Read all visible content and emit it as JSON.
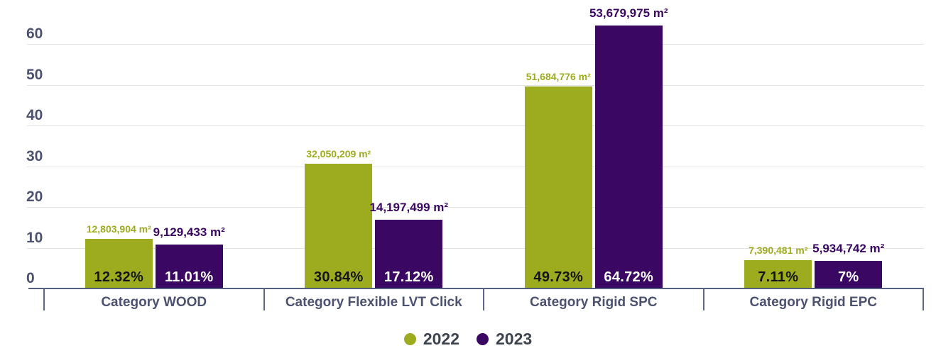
{
  "chart_data": {
    "type": "bar",
    "categories": [
      "Category WOOD",
      "Category Flexible LVT Click",
      "Category Rigid SPC",
      "Category Rigid EPC"
    ],
    "series": [
      {
        "name": "2022",
        "color": "#9dac1e",
        "values_pct": [
          12.32,
          30.84,
          49.73,
          7.11
        ],
        "pct_labels": [
          "12.32%",
          "30.84%",
          "49.73%",
          "7.11%"
        ],
        "area_labels": [
          "12,803,904 m²",
          "32,050,209 m²",
          "51,684,776 m²",
          "7,390,481 m²"
        ]
      },
      {
        "name": "2023",
        "color": "#3a0763",
        "values_pct": [
          11.01,
          17.12,
          64.72,
          7
        ],
        "pct_labels": [
          "11.01%",
          "17.12%",
          "64.72%",
          "7%"
        ],
        "area_labels": [
          "9,129,433 m²",
          "14,197,499 m²",
          "53,679,975 m²",
          "5,934,742 m²"
        ]
      }
    ],
    "yticks": [
      0,
      10,
      20,
      30,
      40,
      50,
      60
    ],
    "ylim": [
      0,
      65.5
    ],
    "grid": true,
    "legend_position": "bottom"
  },
  "styles": {
    "grid_color": "#e2e2e5",
    "axis_line_color": "#565e80",
    "axis_label_color": "#4c5270",
    "legend_text_color": "#3d434f",
    "pct_text_on_2022": "#141414",
    "pct_text_on_2023": "#ffffff"
  }
}
